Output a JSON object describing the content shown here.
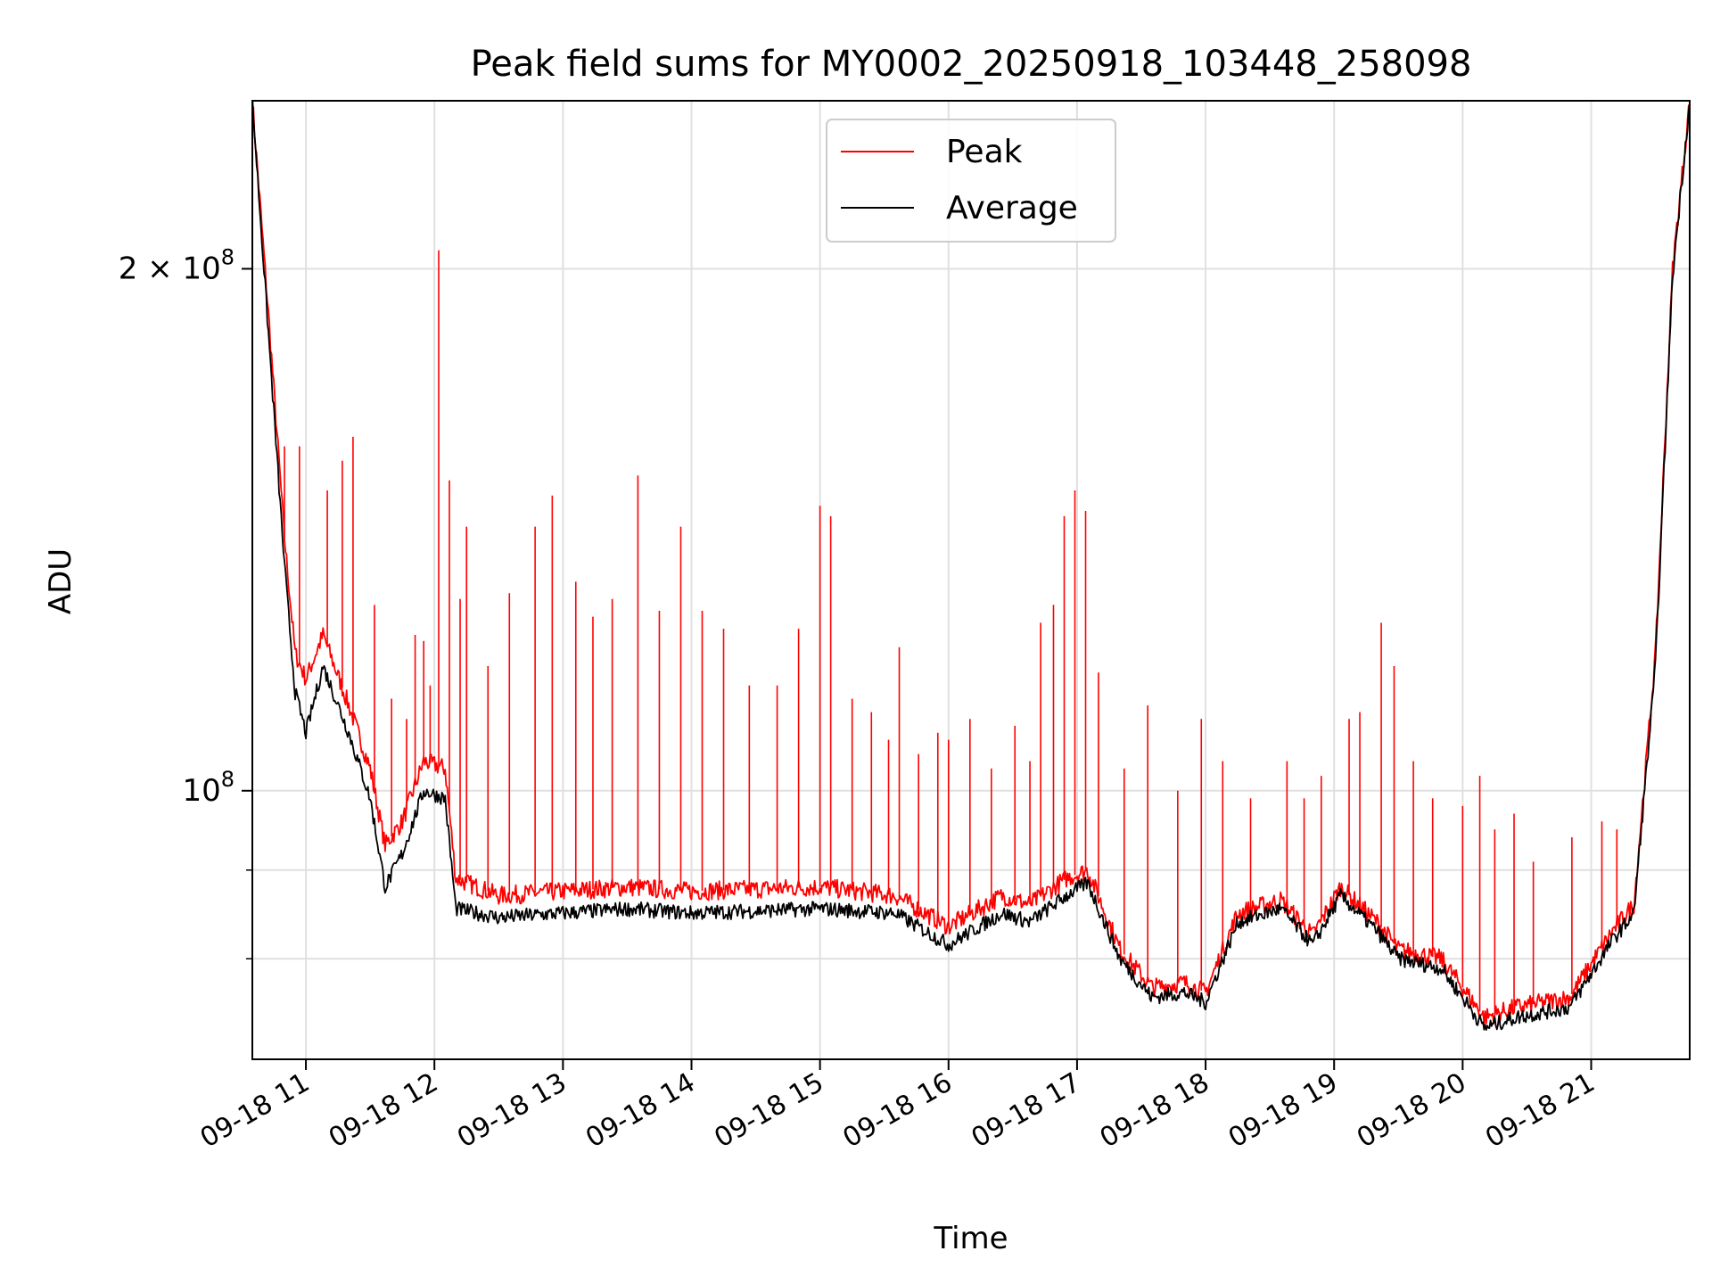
{
  "chart_data": {
    "type": "line",
    "title": "Peak field sums for MY0002_20250918_103448_258098",
    "xlabel": "Time",
    "ylabel": "ADU",
    "yscale": "log",
    "xlim": [
      "2025-09-18 10:35",
      "2025-09-18 21:46"
    ],
    "ylim": [
      70000000,
      250000000
    ],
    "x_ticks": [
      {
        "t": "2025-09-18 11:00",
        "label": "09-18 11"
      },
      {
        "t": "2025-09-18 12:00",
        "label": "09-18 12"
      },
      {
        "t": "2025-09-18 13:00",
        "label": "09-18 13"
      },
      {
        "t": "2025-09-18 14:00",
        "label": "09-18 14"
      },
      {
        "t": "2025-09-18 15:00",
        "label": "09-18 15"
      },
      {
        "t": "2025-09-18 16:00",
        "label": "09-18 16"
      },
      {
        "t": "2025-09-18 17:00",
        "label": "09-18 17"
      },
      {
        "t": "2025-09-18 18:00",
        "label": "09-18 18"
      },
      {
        "t": "2025-09-18 19:00",
        "label": "09-18 19"
      },
      {
        "t": "2025-09-18 20:00",
        "label": "09-18 20"
      },
      {
        "t": "2025-09-18 21:00",
        "label": "09-18 21"
      }
    ],
    "y_major_ticks": [
      {
        "v": 100000000,
        "mant": "",
        "exp": "8",
        "base": "10"
      },
      {
        "v": 200000000,
        "mant": "2 × ",
        "exp": "8",
        "base": "10"
      }
    ],
    "y_minor_ticks": [
      80000000,
      90000000
    ],
    "grid": true,
    "legend_position": "upper-center",
    "series": [
      {
        "name": "Peak",
        "color": "#ff0000",
        "baseline": [
          [
            "2025-09-18 10:35",
            250000000
          ],
          [
            "2025-09-18 10:43",
            185000000
          ],
          [
            "2025-09-18 10:50",
            140000000
          ],
          [
            "2025-09-18 10:55",
            120000000
          ],
          [
            "2025-09-18 11:00",
            116000000
          ],
          [
            "2025-09-18 11:08",
            123000000
          ],
          [
            "2025-09-18 11:20",
            112000000
          ],
          [
            "2025-09-18 11:30",
            103000000
          ],
          [
            "2025-09-18 11:37",
            93000000
          ],
          [
            "2025-09-18 11:45",
            96000000
          ],
          [
            "2025-09-18 11:55",
            104000000
          ],
          [
            "2025-09-18 12:05",
            103000000
          ],
          [
            "2025-09-18 12:10",
            89000000
          ],
          [
            "2025-09-18 12:30",
            87000000
          ],
          [
            "2025-09-18 13:00",
            87500000
          ],
          [
            "2025-09-18 13:30",
            88000000
          ],
          [
            "2025-09-18 14:00",
            87500000
          ],
          [
            "2025-09-18 15:00",
            88000000
          ],
          [
            "2025-09-18 15:35",
            87000000
          ],
          [
            "2025-09-18 16:00",
            83500000
          ],
          [
            "2025-09-18 16:25",
            87000000
          ],
          [
            "2025-09-18 16:38",
            86000000
          ],
          [
            "2025-09-18 16:55",
            89000000
          ],
          [
            "2025-09-18 17:05",
            90000000
          ],
          [
            "2025-09-18 17:20",
            81000000
          ],
          [
            "2025-09-18 17:35",
            77000000
          ],
          [
            "2025-09-18 17:50",
            77500000
          ],
          [
            "2025-09-18 18:00",
            76500000
          ],
          [
            "2025-09-18 18:15",
            85000000
          ],
          [
            "2025-09-18 18:35",
            86500000
          ],
          [
            "2025-09-18 18:50",
            82500000
          ],
          [
            "2025-09-18 19:03",
            88000000
          ],
          [
            "2025-09-18 19:20",
            84000000
          ],
          [
            "2025-09-18 19:30",
            81000000
          ],
          [
            "2025-09-18 19:50",
            80000000
          ],
          [
            "2025-09-18 20:00",
            77000000
          ],
          [
            "2025-09-18 20:10",
            74000000
          ],
          [
            "2025-09-18 20:25",
            75000000
          ],
          [
            "2025-09-18 20:50",
            76000000
          ],
          [
            "2025-09-18 21:10",
            83000000
          ],
          [
            "2025-09-18 21:20",
            86000000
          ],
          [
            "2025-09-18 21:30",
            120000000
          ],
          [
            "2025-09-18 21:38",
            200000000
          ],
          [
            "2025-09-18 21:46",
            250000000
          ]
        ],
        "spikes": [
          [
            "2025-09-18 10:50",
            158000000
          ],
          [
            "2025-09-18 10:57",
            158000000
          ],
          [
            "2025-09-18 11:10",
            149000000
          ],
          [
            "2025-09-18 11:17",
            155000000
          ],
          [
            "2025-09-18 11:22",
            160000000
          ],
          [
            "2025-09-18 11:32",
            128000000
          ],
          [
            "2025-09-18 11:40",
            113000000
          ],
          [
            "2025-09-18 11:47",
            110000000
          ],
          [
            "2025-09-18 11:51",
            123000000
          ],
          [
            "2025-09-18 11:55",
            122000000
          ],
          [
            "2025-09-18 11:58",
            115000000
          ],
          [
            "2025-09-18 12:02",
            205000000
          ],
          [
            "2025-09-18 12:07",
            151000000
          ],
          [
            "2025-09-18 12:12",
            129000000
          ],
          [
            "2025-09-18 12:15",
            142000000
          ],
          [
            "2025-09-18 12:25",
            118000000
          ],
          [
            "2025-09-18 12:35",
            130000000
          ],
          [
            "2025-09-18 12:47",
            142000000
          ],
          [
            "2025-09-18 12:55",
            148000000
          ],
          [
            "2025-09-18 13:06",
            132000000
          ],
          [
            "2025-09-18 13:14",
            126000000
          ],
          [
            "2025-09-18 13:23",
            129000000
          ],
          [
            "2025-09-18 13:35",
            152000000
          ],
          [
            "2025-09-18 13:45",
            127000000
          ],
          [
            "2025-09-18 13:55",
            142000000
          ],
          [
            "2025-09-18 14:05",
            127000000
          ],
          [
            "2025-09-18 14:15",
            124000000
          ],
          [
            "2025-09-18 14:27",
            115000000
          ],
          [
            "2025-09-18 14:40",
            115000000
          ],
          [
            "2025-09-18 14:50",
            124000000
          ],
          [
            "2025-09-18 15:00",
            146000000
          ],
          [
            "2025-09-18 15:05",
            144000000
          ],
          [
            "2025-09-18 15:15",
            113000000
          ],
          [
            "2025-09-18 15:24",
            111000000
          ],
          [
            "2025-09-18 15:32",
            107000000
          ],
          [
            "2025-09-18 15:37",
            121000000
          ],
          [
            "2025-09-18 15:46",
            105000000
          ],
          [
            "2025-09-18 15:55",
            108000000
          ],
          [
            "2025-09-18 16:00",
            107000000
          ],
          [
            "2025-09-18 16:10",
            110000000
          ],
          [
            "2025-09-18 16:20",
            103000000
          ],
          [
            "2025-09-18 16:31",
            109000000
          ],
          [
            "2025-09-18 16:38",
            104000000
          ],
          [
            "2025-09-18 16:43",
            125000000
          ],
          [
            "2025-09-18 16:49",
            128000000
          ],
          [
            "2025-09-18 16:54",
            144000000
          ],
          [
            "2025-09-18 16:59",
            149000000
          ],
          [
            "2025-09-18 17:04",
            145000000
          ],
          [
            "2025-09-18 17:10",
            117000000
          ],
          [
            "2025-09-18 17:22",
            103000000
          ],
          [
            "2025-09-18 17:33",
            112000000
          ],
          [
            "2025-09-18 17:47",
            100000000
          ],
          [
            "2025-09-18 17:58",
            110000000
          ],
          [
            "2025-09-18 18:08",
            104000000
          ],
          [
            "2025-09-18 18:21",
            99000000
          ],
          [
            "2025-09-18 18:38",
            104000000
          ],
          [
            "2025-09-18 18:46",
            99000000
          ],
          [
            "2025-09-18 18:54",
            102000000
          ],
          [
            "2025-09-18 19:07",
            110000000
          ],
          [
            "2025-09-18 19:12",
            111000000
          ],
          [
            "2025-09-18 19:22",
            125000000
          ],
          [
            "2025-09-18 19:28",
            118000000
          ],
          [
            "2025-09-18 19:37",
            104000000
          ],
          [
            "2025-09-18 19:46",
            99000000
          ],
          [
            "2025-09-18 20:00",
            98000000
          ],
          [
            "2025-09-18 20:08",
            102000000
          ],
          [
            "2025-09-18 20:15",
            95000000
          ],
          [
            "2025-09-18 20:24",
            97000000
          ],
          [
            "2025-09-18 20:33",
            91000000
          ],
          [
            "2025-09-18 20:51",
            94000000
          ],
          [
            "2025-09-18 21:05",
            96000000
          ],
          [
            "2025-09-18 21:12",
            95000000
          ]
        ]
      },
      {
        "name": "Average",
        "color": "#000000",
        "baseline": [
          [
            "2025-09-18 10:35",
            250000000
          ],
          [
            "2025-09-18 10:43",
            180000000
          ],
          [
            "2025-09-18 10:50",
            135000000
          ],
          [
            "2025-09-18 10:55",
            114000000
          ],
          [
            "2025-09-18 11:00",
            108000000
          ],
          [
            "2025-09-18 11:08",
            118000000
          ],
          [
            "2025-09-18 11:20",
            108000000
          ],
          [
            "2025-09-18 11:30",
            99000000
          ],
          [
            "2025-09-18 11:37",
            88000000
          ],
          [
            "2025-09-18 11:45",
            92000000
          ],
          [
            "2025-09-18 11:55",
            100000000
          ],
          [
            "2025-09-18 12:05",
            99000000
          ],
          [
            "2025-09-18 12:10",
            85500000
          ],
          [
            "2025-09-18 12:30",
            84500000
          ],
          [
            "2025-09-18 13:00",
            85000000
          ],
          [
            "2025-09-18 13:30",
            85500000
          ],
          [
            "2025-09-18 14:00",
            85000000
          ],
          [
            "2025-09-18 15:00",
            85500000
          ],
          [
            "2025-09-18 15:35",
            85000000
          ],
          [
            "2025-09-18 16:00",
            81500000
          ],
          [
            "2025-09-18 16:25",
            85000000
          ],
          [
            "2025-09-18 16:38",
            84000000
          ],
          [
            "2025-09-18 16:55",
            87000000
          ],
          [
            "2025-09-18 17:05",
            88500000
          ],
          [
            "2025-09-18 17:20",
            80000000
          ],
          [
            "2025-09-18 17:35",
            76000000
          ],
          [
            "2025-09-18 17:50",
            76500000
          ],
          [
            "2025-09-18 18:00",
            75500000
          ],
          [
            "2025-09-18 18:15",
            84000000
          ],
          [
            "2025-09-18 18:35",
            85500000
          ],
          [
            "2025-09-18 18:50",
            81500000
          ],
          [
            "2025-09-18 19:03",
            87000000
          ],
          [
            "2025-09-18 19:20",
            83000000
          ],
          [
            "2025-09-18 19:30",
            80000000
          ],
          [
            "2025-09-18 19:50",
            79000000
          ],
          [
            "2025-09-18 20:00",
            76000000
          ],
          [
            "2025-09-18 20:10",
            73000000
          ],
          [
            "2025-09-18 20:25",
            74000000
          ],
          [
            "2025-09-18 20:50",
            75000000
          ],
          [
            "2025-09-18 21:10",
            82000000
          ],
          [
            "2025-09-18 21:20",
            85000000
          ],
          [
            "2025-09-18 21:30",
            118000000
          ],
          [
            "2025-09-18 21:38",
            198000000
          ],
          [
            "2025-09-18 21:46",
            250000000
          ]
        ]
      }
    ]
  }
}
